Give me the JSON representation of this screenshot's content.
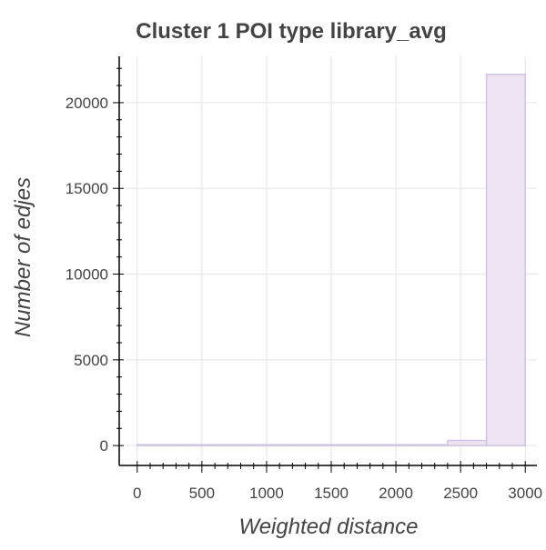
{
  "chart_data": {
    "type": "bar",
    "title": "Cluster 1 POI type library_avg",
    "xlabel": "Weighted distance",
    "ylabel": "Number of edjes",
    "xlim": [
      -90,
      3090
    ],
    "ylim": [
      -1000,
      22700
    ],
    "xticks": [
      0,
      500,
      1000,
      1500,
      2000,
      2500,
      3000
    ],
    "yticks": [
      0,
      5000,
      10000,
      15000,
      20000
    ],
    "grid": true,
    "fill_color": "#ede3f1",
    "line_color": "#cdc5e3",
    "bins": [
      {
        "x0": 0,
        "x1": 300,
        "count": 0
      },
      {
        "x0": 300,
        "x1": 600,
        "count": 0
      },
      {
        "x0": 600,
        "x1": 900,
        "count": 0
      },
      {
        "x0": 900,
        "x1": 1200,
        "count": 0
      },
      {
        "x0": 1200,
        "x1": 1500,
        "count": 0
      },
      {
        "x0": 1500,
        "x1": 1800,
        "count": 0
      },
      {
        "x0": 1800,
        "x1": 2100,
        "count": 10
      },
      {
        "x0": 2100,
        "x1": 2400,
        "count": 40
      },
      {
        "x0": 2400,
        "x1": 2700,
        "count": 300
      },
      {
        "x0": 2700,
        "x1": 3000,
        "count": 21650
      }
    ]
  }
}
